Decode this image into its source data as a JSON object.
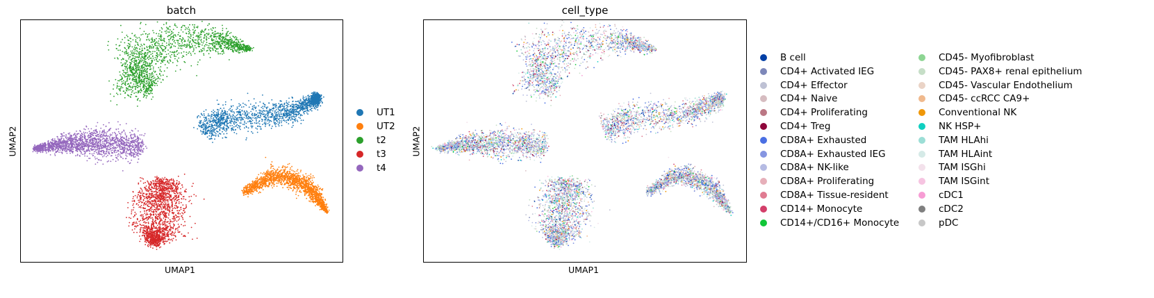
{
  "chart_data": [
    {
      "type": "scatter",
      "title": "batch",
      "xlabel": "UMAP1",
      "ylabel": "UMAP2",
      "grid": false,
      "legend_placement": "right, outside",
      "series": [
        {
          "name": "UT1",
          "color": "#1f77b4"
        },
        {
          "name": "UT2",
          "color": "#ff7f0e"
        },
        {
          "name": "t2",
          "color": "#2ca02c"
        },
        {
          "name": "t3",
          "color": "#d62728"
        },
        {
          "name": "t4",
          "color": "#9467bd"
        }
      ]
    },
    {
      "type": "scatter",
      "title": "cell_type",
      "xlabel": "UMAP1",
      "ylabel": "UMAP2",
      "grid": false,
      "legend_placement": "right, outside, two columns",
      "series": [
        {
          "name": "B cell",
          "color": "#023fa5"
        },
        {
          "name": "CD4+ Activated IEG",
          "color": "#7d87b9"
        },
        {
          "name": "CD4+ Effector",
          "color": "#bec1d4"
        },
        {
          "name": "CD4+ Naive",
          "color": "#d6bcc0"
        },
        {
          "name": "CD4+ Proliferating",
          "color": "#bb7784"
        },
        {
          "name": "CD4+ Treg",
          "color": "#8e063b"
        },
        {
          "name": "CD8A+ Exhausted",
          "color": "#4a6fe3"
        },
        {
          "name": "CD8A+ Exhausted IEG",
          "color": "#8595e1"
        },
        {
          "name": "CD8A+ NK-like",
          "color": "#b5bbe3"
        },
        {
          "name": "CD8A+ Proliferating",
          "color": "#e6afb9"
        },
        {
          "name": "CD8A+ Tissue-resident",
          "color": "#e07b91"
        },
        {
          "name": "CD14+ Monocyte",
          "color": "#d33f6a"
        },
        {
          "name": "CD14+/CD16+ Monocyte",
          "color": "#11c638"
        },
        {
          "name": "CD45- Myofibroblast",
          "color": "#8dd593"
        },
        {
          "name": "CD45- PAX8+ renal epithelium",
          "color": "#c6dec7"
        },
        {
          "name": "CD45- Vascular Endothelium",
          "color": "#ead3c6"
        },
        {
          "name": "CD45- ccRCC CA9+",
          "color": "#f0b98d"
        },
        {
          "name": "Conventional NK",
          "color": "#ef9708"
        },
        {
          "name": "NK HSP+",
          "color": "#0fcfc0"
        },
        {
          "name": "TAM HLAhi",
          "color": "#9cded6"
        },
        {
          "name": "TAM HLAint",
          "color": "#d5eae7"
        },
        {
          "name": "TAM ISGhi",
          "color": "#f3e1eb"
        },
        {
          "name": "TAM ISGint",
          "color": "#f6c4e1"
        },
        {
          "name": "cDC1",
          "color": "#f79cd4"
        },
        {
          "name": "cDC2",
          "color": "#7f7f7f"
        },
        {
          "name": "pDC",
          "color": "#c7c7c7"
        }
      ]
    }
  ]
}
